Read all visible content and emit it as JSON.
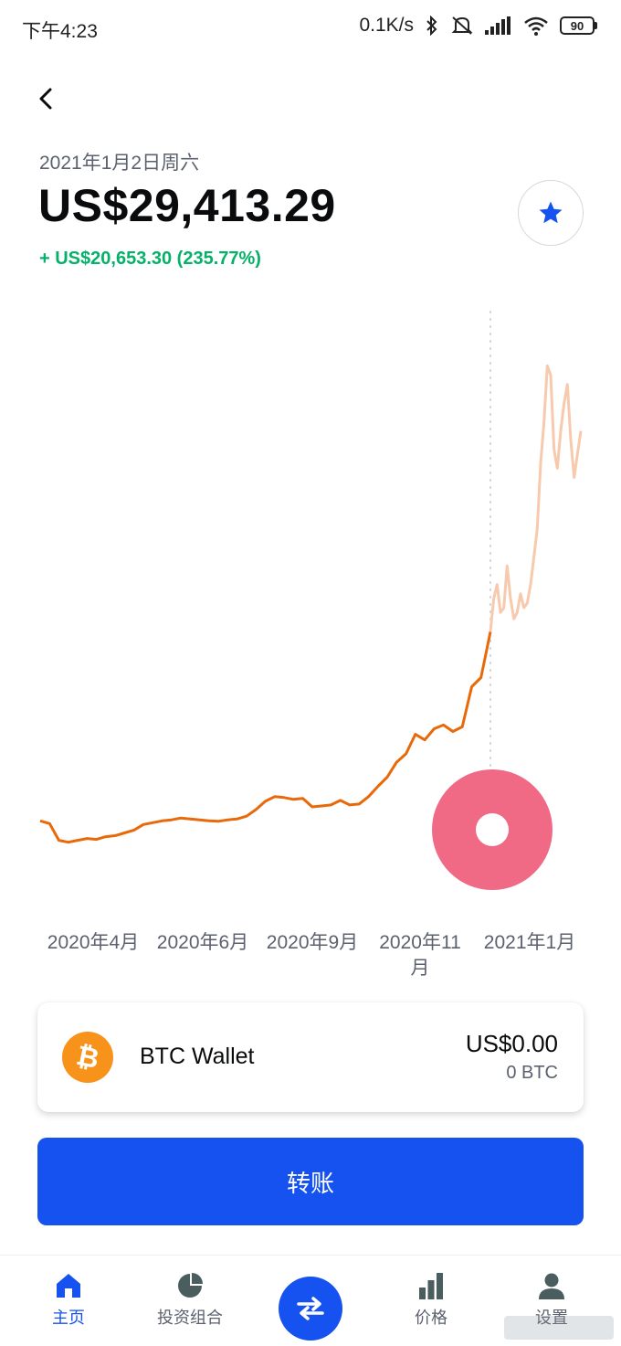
{
  "status_bar": {
    "time": "下午4:23",
    "network_speed": "0.1K/s",
    "battery": "90"
  },
  "header": {
    "date": "2021年1月2日周六",
    "price": "US$29,413.29",
    "change": "+ US$20,653.30 (235.77%)"
  },
  "colors": {
    "accent": "#1652f0",
    "positive": "#05b169",
    "chart_line": "#e8690a",
    "chart_future": "#f7c9ad",
    "scrub_marker": "#f06a86",
    "btc": "#f7931a"
  },
  "chart_data": {
    "type": "line",
    "x_tick_labels": [
      "2020年4月",
      "2020年6月",
      "2020年9月",
      "2020年11\n月",
      "2021年1月"
    ],
    "series": [
      {
        "values": [
          9100,
          8800,
          7000,
          6800,
          7000,
          7200,
          7100,
          7400,
          7500,
          7800,
          8100,
          8700,
          8900,
          9100,
          9200,
          9400,
          9300,
          9200,
          9100,
          9050,
          9200,
          9300,
          9600,
          10300,
          11200,
          11700,
          11600,
          11400,
          11500,
          10600,
          10700,
          10800,
          11300,
          10800,
          10900,
          11700,
          12800,
          13800,
          15400,
          16300,
          18400,
          17800,
          19000,
          19400,
          18700,
          19200,
          23500,
          24500,
          29413
        ],
        "highlighted_until_index": 48
      }
    ],
    "future_values": [
      29413,
      33000,
      34500,
      31500,
      32000,
      36500,
      33000,
      30800,
      31500,
      33500,
      32000,
      32500,
      34500,
      37500,
      40500,
      47500,
      52000,
      58000,
      57000,
      49000,
      47000,
      51000,
      54000,
      56000,
      50000,
      46000,
      48500,
      51000
    ],
    "ylim": [
      5000,
      60000
    ],
    "grid": false
  },
  "wallet": {
    "name": "BTC Wallet",
    "usd_balance": "US$0.00",
    "btc_balance": "0 BTC",
    "icon": "bitcoin-icon"
  },
  "actions": {
    "transfer_label": "转账"
  },
  "bottom_nav": {
    "items": [
      {
        "label": "主页",
        "icon": "home-icon",
        "active": true
      },
      {
        "label": "投资组合",
        "icon": "pie-chart-icon",
        "active": false
      },
      {
        "label": "",
        "icon": "swap-arrows-icon",
        "active": false
      },
      {
        "label": "价格",
        "icon": "bar-chart-icon",
        "active": false
      },
      {
        "label": "设置",
        "icon": "user-icon",
        "active": false
      }
    ]
  }
}
